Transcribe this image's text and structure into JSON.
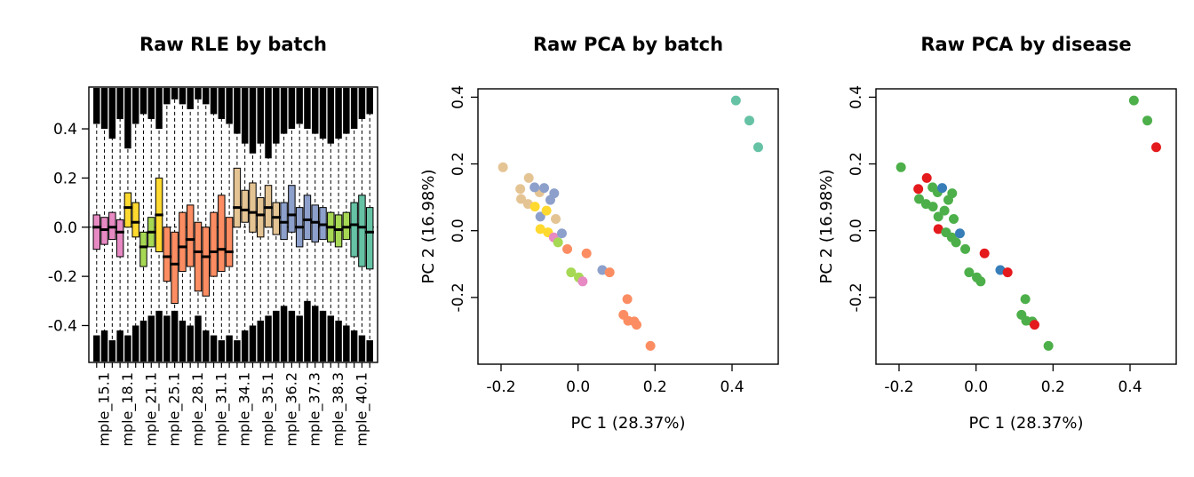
{
  "figure": {
    "background": "#ffffff",
    "frame_color": "#000000"
  },
  "chart_data": [
    {
      "type": "boxplot",
      "title": "Raw RLE by batch",
      "xlabel": "",
      "ylabel": "",
      "ylim": [
        -0.55,
        0.57
      ],
      "yticks": [
        -0.4,
        -0.2,
        0,
        0.2,
        0.4
      ],
      "zero_line": 0,
      "grid": false,
      "whisker_low": -0.525,
      "whisker_high": 0.545,
      "x_tick_labels": [
        "mple_15.1",
        "mple_18.1",
        "mple_21.1",
        "mple_25.1",
        "mple_28.1",
        "mple_31.1",
        "mple_34.1",
        "mple_35.1",
        "mple_36.2",
        "mple_37.3",
        "mple_38.3",
        "mple_40.1"
      ],
      "label_offset": 1,
      "label_every": 3,
      "palette": {
        "pink": "#E78AC3",
        "yellow": "#FFD92F",
        "lime": "#A6D854",
        "orange": "#FC8D62",
        "tan": "#E5C494",
        "blue": "#8DA0CB",
        "teal": "#66C2A5"
      },
      "boxes": [
        {
          "color": "pink",
          "med": 0.0,
          "q1": -0.09,
          "q3": 0.05,
          "out_top": 0.42,
          "out_bot": -0.44
        },
        {
          "color": "pink",
          "med": -0.01,
          "q1": -0.07,
          "q3": 0.04,
          "out_top": 0.4,
          "out_bot": -0.42
        },
        {
          "color": "pink",
          "med": 0.0,
          "q1": -0.05,
          "q3": 0.06,
          "out_top": 0.36,
          "out_bot": -0.46
        },
        {
          "color": "pink",
          "med": -0.02,
          "q1": -0.12,
          "q3": 0.03,
          "out_top": 0.44,
          "out_bot": -0.42
        },
        {
          "color": "yellow",
          "med": 0.08,
          "q1": 0.0,
          "q3": 0.14,
          "out_top": 0.32,
          "out_bot": -0.44
        },
        {
          "color": "yellow",
          "med": 0.02,
          "q1": -0.04,
          "q3": 0.1,
          "out_top": 0.42,
          "out_bot": -0.4
        },
        {
          "color": "lime",
          "med": -0.08,
          "q1": -0.16,
          "q3": -0.02,
          "out_top": 0.46,
          "out_bot": -0.38
        },
        {
          "color": "lime",
          "med": -0.02,
          "q1": -0.08,
          "q3": 0.04,
          "out_top": 0.44,
          "out_bot": -0.36
        },
        {
          "color": "yellow",
          "med": 0.05,
          "q1": -0.1,
          "q3": 0.2,
          "out_top": 0.4,
          "out_bot": -0.34
        },
        {
          "color": "orange",
          "med": -0.12,
          "q1": -0.22,
          "q3": 0.0,
          "out_top": 0.5,
          "out_bot": -0.36
        },
        {
          "color": "orange",
          "med": -0.15,
          "q1": -0.31,
          "q3": -0.02,
          "out_top": 0.52,
          "out_bot": -0.34
        },
        {
          "color": "orange",
          "med": -0.08,
          "q1": -0.18,
          "q3": 0.06,
          "out_top": 0.5,
          "out_bot": -0.38
        },
        {
          "color": "orange",
          "med": -0.05,
          "q1": -0.16,
          "q3": 0.09,
          "out_top": 0.48,
          "out_bot": -0.4
        },
        {
          "color": "orange",
          "med": -0.1,
          "q1": -0.26,
          "q3": 0.02,
          "out_top": 0.52,
          "out_bot": -0.36
        },
        {
          "color": "orange",
          "med": -0.12,
          "q1": -0.28,
          "q3": 0.0,
          "out_top": 0.5,
          "out_bot": -0.42
        },
        {
          "color": "orange",
          "med": -0.1,
          "q1": -0.2,
          "q3": 0.06,
          "out_top": 0.46,
          "out_bot": -0.44
        },
        {
          "color": "orange",
          "med": -0.09,
          "q1": -0.18,
          "q3": 0.13,
          "out_top": 0.44,
          "out_bot": -0.46
        },
        {
          "color": "orange",
          "med": -0.1,
          "q1": -0.16,
          "q3": 0.04,
          "out_top": 0.42,
          "out_bot": -0.44
        },
        {
          "color": "tan",
          "med": 0.08,
          "q1": 0.0,
          "q3": 0.24,
          "out_top": 0.38,
          "out_bot": -0.46
        },
        {
          "color": "tan",
          "med": 0.07,
          "q1": 0.02,
          "q3": 0.15,
          "out_top": 0.34,
          "out_bot": -0.42
        },
        {
          "color": "tan",
          "med": 0.06,
          "q1": -0.02,
          "q3": 0.18,
          "out_top": 0.3,
          "out_bot": -0.4
        },
        {
          "color": "tan",
          "med": 0.05,
          "q1": -0.04,
          "q3": 0.12,
          "out_top": 0.34,
          "out_bot": -0.38
        },
        {
          "color": "tan",
          "med": 0.08,
          "q1": 0.0,
          "q3": 0.17,
          "out_top": 0.28,
          "out_bot": -0.36
        },
        {
          "color": "tan",
          "med": 0.04,
          "q1": -0.03,
          "q3": 0.1,
          "out_top": 0.34,
          "out_bot": -0.34
        },
        {
          "color": "blue",
          "med": 0.02,
          "q1": -0.05,
          "q3": 0.1,
          "out_top": 0.38,
          "out_bot": -0.32
        },
        {
          "color": "blue",
          "med": 0.05,
          "q1": -0.02,
          "q3": 0.17,
          "out_top": 0.4,
          "out_bot": -0.34
        },
        {
          "color": "blue",
          "med": 0.0,
          "q1": -0.08,
          "q3": 0.08,
          "out_top": 0.42,
          "out_bot": -0.36
        },
        {
          "color": "blue",
          "med": 0.03,
          "q1": -0.05,
          "q3": 0.13,
          "out_top": 0.4,
          "out_bot": -0.3
        },
        {
          "color": "blue",
          "med": 0.02,
          "q1": -0.06,
          "q3": 0.09,
          "out_top": 0.38,
          "out_bot": -0.32
        },
        {
          "color": "blue",
          "med": 0.01,
          "q1": -0.05,
          "q3": 0.08,
          "out_top": 0.36,
          "out_bot": -0.34
        },
        {
          "color": "lime",
          "med": 0.0,
          "q1": -0.06,
          "q3": 0.06,
          "out_top": 0.34,
          "out_bot": -0.36
        },
        {
          "color": "lime",
          "med": -0.01,
          "q1": -0.08,
          "q3": 0.05,
          "out_top": 0.36,
          "out_bot": -0.38
        },
        {
          "color": "lime",
          "med": 0.0,
          "q1": -0.05,
          "q3": 0.06,
          "out_top": 0.38,
          "out_bot": -0.4
        },
        {
          "color": "teal",
          "med": 0.01,
          "q1": -0.12,
          "q3": 0.1,
          "out_top": 0.4,
          "out_bot": -0.42
        },
        {
          "color": "teal",
          "med": 0.0,
          "q1": -0.16,
          "q3": 0.13,
          "out_top": 0.44,
          "out_bot": -0.44
        },
        {
          "color": "teal",
          "med": -0.02,
          "q1": -0.17,
          "q3": 0.08,
          "out_top": 0.46,
          "out_bot": -0.46
        }
      ]
    },
    {
      "type": "scatter",
      "title": "Raw PCA by batch",
      "xlabel": "PC 1 (28.37%)",
      "ylabel": "PC 2 (16.98%)",
      "xlim": [
        -0.26,
        0.52
      ],
      "ylim": [
        -0.4,
        0.425
      ],
      "xticks": [
        -0.2,
        0,
        0.2,
        0.4
      ],
      "yticks": [
        -0.2,
        0,
        0.2,
        0.4
      ],
      "grid": false,
      "legend": "none",
      "palette": {
        "teal": "#66C2A5",
        "orange": "#FC8D62",
        "blue": "#8DA0CB",
        "pink": "#E78AC3",
        "lime": "#A6D854",
        "yellow": "#FFD92F",
        "tan": "#E5C494"
      },
      "points": [
        {
          "x": -0.195,
          "y": 0.19,
          "g": "tan"
        },
        {
          "x": -0.15,
          "y": 0.125,
          "g": "tan"
        },
        {
          "x": -0.148,
          "y": 0.095,
          "g": "tan"
        },
        {
          "x": -0.13,
          "y": 0.08,
          "g": "tan"
        },
        {
          "x": -0.128,
          "y": 0.158,
          "g": "tan"
        },
        {
          "x": -0.1,
          "y": 0.115,
          "g": "tan"
        },
        {
          "x": -0.113,
          "y": 0.13,
          "g": "blue"
        },
        {
          "x": -0.088,
          "y": 0.128,
          "g": "blue"
        },
        {
          "x": -0.112,
          "y": 0.072,
          "g": "yellow"
        },
        {
          "x": -0.098,
          "y": 0.042,
          "g": "blue"
        },
        {
          "x": -0.082,
          "y": 0.06,
          "g": "yellow"
        },
        {
          "x": -0.072,
          "y": 0.092,
          "g": "blue"
        },
        {
          "x": -0.062,
          "y": 0.112,
          "g": "blue"
        },
        {
          "x": -0.058,
          "y": 0.035,
          "g": "tan"
        },
        {
          "x": -0.098,
          "y": 0.005,
          "g": "yellow"
        },
        {
          "x": -0.078,
          "y": -0.005,
          "g": "yellow"
        },
        {
          "x": -0.063,
          "y": -0.02,
          "g": "pink"
        },
        {
          "x": -0.052,
          "y": -0.035,
          "g": "lime"
        },
        {
          "x": -0.042,
          "y": -0.008,
          "g": "blue"
        },
        {
          "x": -0.028,
          "y": -0.055,
          "g": "orange"
        },
        {
          "x": 0.022,
          "y": -0.068,
          "g": "orange"
        },
        {
          "x": -0.018,
          "y": -0.125,
          "g": "lime"
        },
        {
          "x": 0.002,
          "y": -0.14,
          "g": "lime"
        },
        {
          "x": 0.012,
          "y": -0.152,
          "g": "pink"
        },
        {
          "x": 0.063,
          "y": -0.118,
          "g": "blue"
        },
        {
          "x": 0.082,
          "y": -0.125,
          "g": "orange"
        },
        {
          "x": 0.128,
          "y": -0.205,
          "g": "orange"
        },
        {
          "x": 0.118,
          "y": -0.252,
          "g": "orange"
        },
        {
          "x": 0.13,
          "y": -0.27,
          "g": "orange"
        },
        {
          "x": 0.146,
          "y": -0.272,
          "g": "orange"
        },
        {
          "x": 0.152,
          "y": -0.282,
          "g": "orange"
        },
        {
          "x": 0.188,
          "y": -0.345,
          "g": "orange"
        },
        {
          "x": 0.41,
          "y": 0.39,
          "g": "teal"
        },
        {
          "x": 0.445,
          "y": 0.33,
          "g": "teal"
        },
        {
          "x": 0.468,
          "y": 0.25,
          "g": "teal"
        }
      ]
    },
    {
      "type": "scatter",
      "title": "Raw PCA by disease",
      "xlabel": "PC 1 (28.37%)",
      "ylabel": "PC 2 (16.98%)",
      "xlim": [
        -0.26,
        0.52
      ],
      "ylim": [
        -0.4,
        0.425
      ],
      "xticks": [
        -0.2,
        0,
        0.2,
        0.4
      ],
      "yticks": [
        -0.2,
        0,
        0.2,
        0.4
      ],
      "grid": false,
      "legend": "none",
      "palette": {
        "red": "#E41A1C",
        "green": "#4DAF4A",
        "blue": "#377EB8"
      },
      "points": [
        {
          "x": -0.195,
          "y": 0.19,
          "g": "green"
        },
        {
          "x": -0.15,
          "y": 0.125,
          "g": "red"
        },
        {
          "x": -0.148,
          "y": 0.095,
          "g": "green"
        },
        {
          "x": -0.13,
          "y": 0.08,
          "g": "green"
        },
        {
          "x": -0.128,
          "y": 0.158,
          "g": "red"
        },
        {
          "x": -0.1,
          "y": 0.115,
          "g": "green"
        },
        {
          "x": -0.113,
          "y": 0.13,
          "g": "green"
        },
        {
          "x": -0.088,
          "y": 0.128,
          "g": "blue"
        },
        {
          "x": -0.112,
          "y": 0.072,
          "g": "green"
        },
        {
          "x": -0.098,
          "y": 0.042,
          "g": "green"
        },
        {
          "x": -0.082,
          "y": 0.06,
          "g": "green"
        },
        {
          "x": -0.072,
          "y": 0.092,
          "g": "green"
        },
        {
          "x": -0.062,
          "y": 0.112,
          "g": "green"
        },
        {
          "x": -0.058,
          "y": 0.035,
          "g": "green"
        },
        {
          "x": -0.098,
          "y": 0.005,
          "g": "red"
        },
        {
          "x": -0.078,
          "y": -0.005,
          "g": "green"
        },
        {
          "x": -0.063,
          "y": -0.02,
          "g": "green"
        },
        {
          "x": -0.052,
          "y": -0.035,
          "g": "green"
        },
        {
          "x": -0.042,
          "y": -0.008,
          "g": "blue"
        },
        {
          "x": -0.028,
          "y": -0.055,
          "g": "green"
        },
        {
          "x": 0.022,
          "y": -0.068,
          "g": "red"
        },
        {
          "x": -0.018,
          "y": -0.125,
          "g": "green"
        },
        {
          "x": 0.002,
          "y": -0.14,
          "g": "green"
        },
        {
          "x": 0.012,
          "y": -0.152,
          "g": "green"
        },
        {
          "x": 0.063,
          "y": -0.118,
          "g": "blue"
        },
        {
          "x": 0.082,
          "y": -0.125,
          "g": "red"
        },
        {
          "x": 0.128,
          "y": -0.205,
          "g": "green"
        },
        {
          "x": 0.118,
          "y": -0.252,
          "g": "green"
        },
        {
          "x": 0.13,
          "y": -0.27,
          "g": "green"
        },
        {
          "x": 0.146,
          "y": -0.272,
          "g": "green"
        },
        {
          "x": 0.152,
          "y": -0.282,
          "g": "red"
        },
        {
          "x": 0.188,
          "y": -0.345,
          "g": "green"
        },
        {
          "x": 0.41,
          "y": 0.39,
          "g": "green"
        },
        {
          "x": 0.445,
          "y": 0.33,
          "g": "green"
        },
        {
          "x": 0.468,
          "y": 0.25,
          "g": "red"
        }
      ]
    }
  ]
}
